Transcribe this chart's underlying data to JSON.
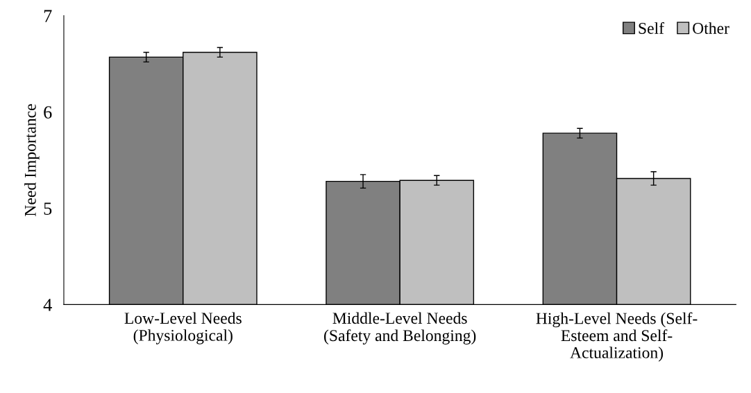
{
  "chart_data": {
    "type": "bar",
    "ylabel": "Need Importance",
    "categories": [
      "Low-Level Needs\n(Physiological)",
      "Middle-Level Needs\n(Safety and Belonging)",
      "High-Level Needs (Self-\nEsteem and Self-\nActualization)"
    ],
    "series": [
      {
        "name": "Self",
        "color": "#808080",
        "values": [
          6.57,
          5.28,
          5.78
        ],
        "errors": [
          0.05,
          0.07,
          0.05
        ]
      },
      {
        "name": "Other",
        "color": "#bfbfbf",
        "values": [
          6.62,
          5.29,
          5.31
        ],
        "errors": [
          0.05,
          0.05,
          0.07
        ]
      }
    ],
    "ylim": [
      4,
      7
    ],
    "yticks": [
      4,
      5,
      6,
      7
    ],
    "grid": false,
    "legend": "top right"
  }
}
